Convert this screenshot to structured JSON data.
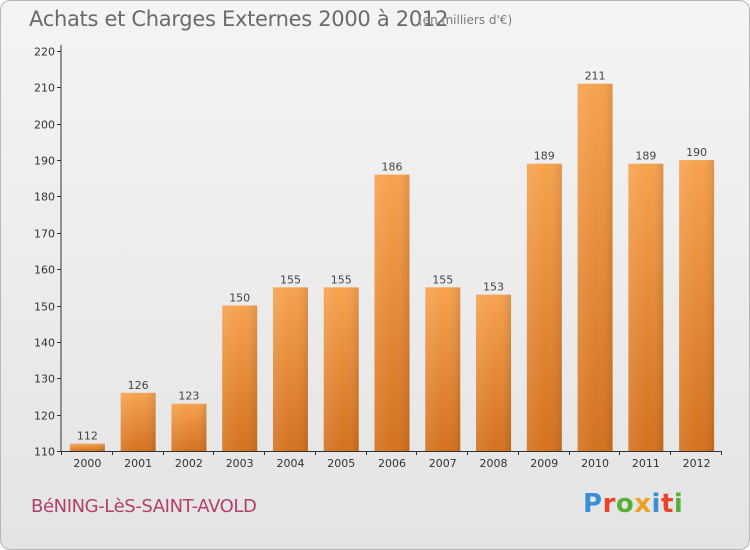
{
  "header": {
    "title": "Achats et Charges Externes 2000 à 2012",
    "subtitle": "(en milliers d'€)"
  },
  "footer": {
    "commune": "BéNING-LèS-SAINT-AVOLD",
    "logo_text": "Proxiti",
    "logo_colors": [
      "#3b8fd6",
      "#e8452c",
      "#58b038",
      "#f0a020",
      "#3b8fd6",
      "#e8452c",
      "#58b038"
    ]
  },
  "colors": {
    "bar_top": "#f6a24e",
    "bar_bottom": "#d4711e",
    "axis": "#333333",
    "grid": "#d9d9d9"
  },
  "chart_data": {
    "type": "bar",
    "categories": [
      "2000",
      "2001",
      "2002",
      "2003",
      "2004",
      "2005",
      "2006",
      "2007",
      "2008",
      "2009",
      "2010",
      "2011",
      "2012"
    ],
    "values": [
      112,
      126,
      123,
      150,
      155,
      155,
      186,
      155,
      153,
      189,
      211,
      189,
      190
    ],
    "ylim": [
      110,
      220
    ],
    "yticks": [
      110,
      120,
      130,
      140,
      150,
      160,
      170,
      180,
      190,
      200,
      210,
      220
    ],
    "grid": false,
    "data_labels": true
  }
}
